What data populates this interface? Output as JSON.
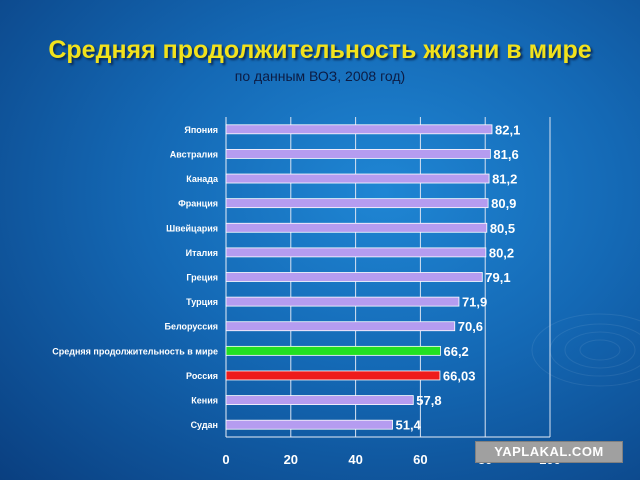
{
  "title": "Средняя продолжительность жизни в мире",
  "subtitle": "по данным ВОЗ, 2008 год)",
  "watermark": "YAPLAKAL.COM",
  "colors": {
    "default_bar": "#b59cf0",
    "world_average_bar": "#22e022",
    "russia_bar": "#ee1b1b",
    "title": "#f2e21c",
    "labels": "#ffffff"
  },
  "chart_data": {
    "type": "bar",
    "orientation": "horizontal",
    "categories": [
      "Япония",
      "Австралия",
      "Канада",
      "Франция",
      "Швейцария",
      "Италия",
      "Греция",
      "Турция",
      "Белоруссия",
      "Средняя продолжительность в мире",
      "Россия",
      "Кения",
      "Судан"
    ],
    "values": [
      82.1,
      81.6,
      81.2,
      80.9,
      80.5,
      80.2,
      79.1,
      71.9,
      70.6,
      66.2,
      66.03,
      57.8,
      51.4
    ],
    "value_labels": [
      "82,1",
      "81,6",
      "81,2",
      "80,9",
      "80,5",
      "80,2",
      "79,1",
      "71,9",
      "70,6",
      "66,2",
      "66,03",
      "57,8",
      "51,4"
    ],
    "bar_colors": [
      "#b59cf0",
      "#b59cf0",
      "#b59cf0",
      "#b59cf0",
      "#b59cf0",
      "#b59cf0",
      "#b59cf0",
      "#b59cf0",
      "#b59cf0",
      "#22e022",
      "#ee1b1b",
      "#b59cf0",
      "#b59cf0"
    ],
    "xlim": [
      0,
      100
    ],
    "xticks": [
      0,
      20,
      40,
      60,
      80,
      100
    ],
    "grid": true,
    "title": "Средняя продолжительность жизни в мире",
    "subtitle": "по данным ВОЗ, 2008 год)",
    "xlabel": "",
    "ylabel": ""
  }
}
